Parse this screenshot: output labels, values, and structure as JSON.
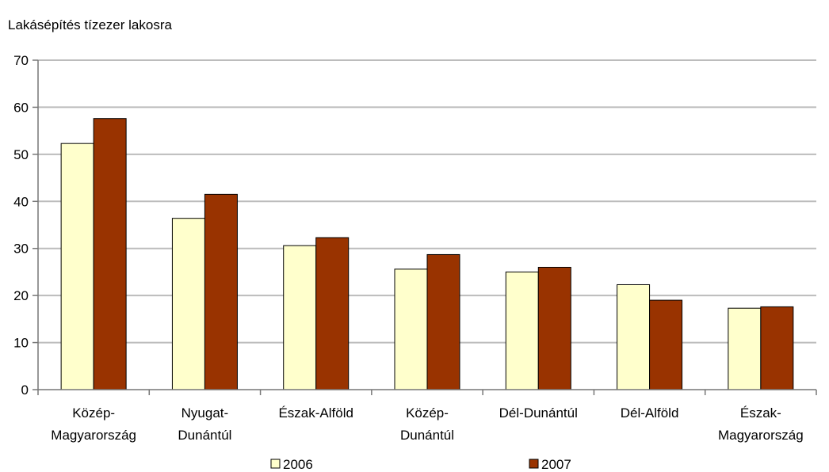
{
  "chart_data": {
    "type": "bar",
    "title": "",
    "ylabel": "Lakásépítés tízezer lakosra",
    "xlabel": "",
    "ylim": [
      0,
      70
    ],
    "yticks": [
      0,
      10,
      20,
      30,
      40,
      50,
      60,
      70
    ],
    "grid": true,
    "legend_position": "bottom",
    "categories": [
      [
        "Közép-",
        "Magyarország"
      ],
      [
        "Nyugat-",
        "Dunántúl"
      ],
      [
        "Észak-Alföld"
      ],
      [
        "Közép-",
        "Dunántúl"
      ],
      [
        "Dél-Dunántúl"
      ],
      [
        "Dél-Alföld"
      ],
      [
        "Észak-",
        "Magyarország"
      ]
    ],
    "series": [
      {
        "name": "2006",
        "color": "#ffffcc",
        "values": [
          52.3,
          36.4,
          30.6,
          25.6,
          25.0,
          22.3,
          17.3
        ]
      },
      {
        "name": "2007",
        "color": "#993300",
        "values": [
          57.6,
          41.5,
          32.3,
          28.7,
          26.0,
          19.0,
          17.6
        ]
      }
    ]
  }
}
